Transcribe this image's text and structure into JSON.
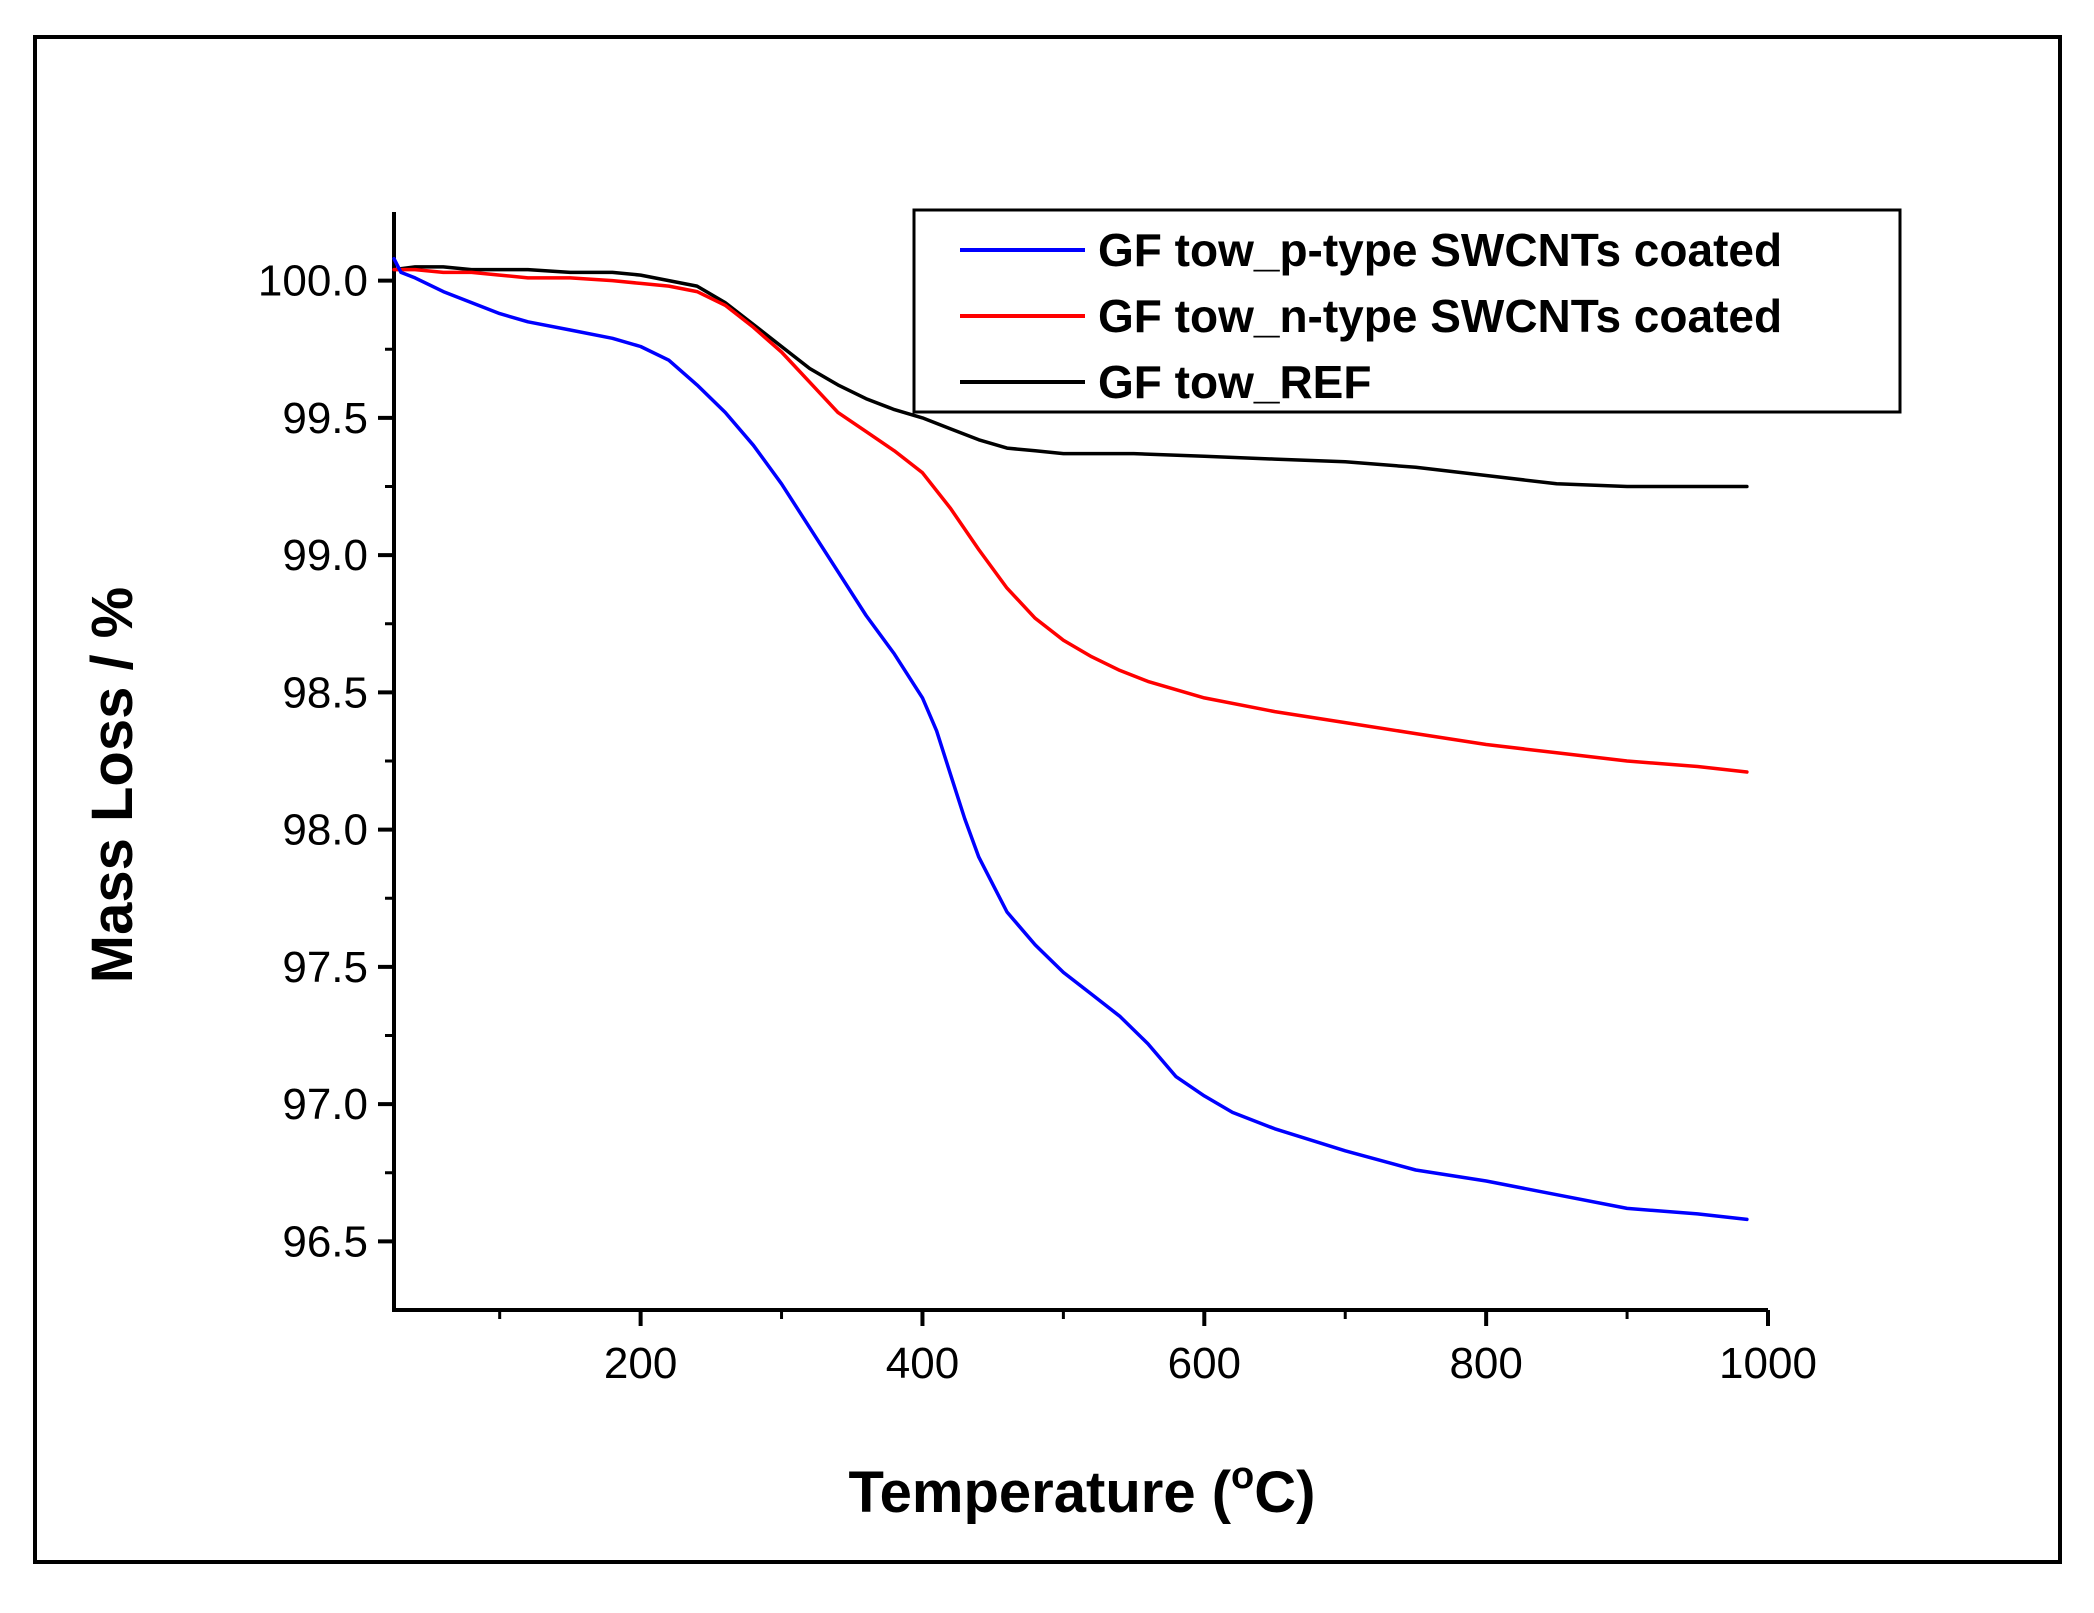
{
  "chart_data": {
    "type": "line",
    "title": "",
    "xlabel": "Temperature (",
    "xlabel_superscript": "o",
    "xlabel_suffix": "C)",
    "ylabel": "Mass Loss / %",
    "xlim": [
      25,
      1000
    ],
    "ylim": [
      96.25,
      100.25
    ],
    "xticks": [
      200,
      400,
      600,
      800,
      1000
    ],
    "xticks_minor": [
      100,
      300,
      500,
      700,
      900
    ],
    "yticks": [
      96.5,
      97.0,
      97.5,
      98.0,
      98.5,
      99.0,
      99.5,
      100.0
    ],
    "yticks_minor": [
      96.75,
      97.25,
      97.75,
      98.25,
      98.75,
      99.25,
      99.75
    ],
    "ytick_labels": [
      "96.5",
      "97.0",
      "97.5",
      "98.0",
      "98.5",
      "99.0",
      "99.5",
      "100.0"
    ],
    "xtick_labels": [
      "200",
      "400",
      "600",
      "800",
      "1000"
    ],
    "grid": false,
    "legend_position": "top-right",
    "series": [
      {
        "name": "GF tow_p-type SWCNTs coated",
        "color": "#0000ff",
        "x": [
          25,
          30,
          40,
          60,
          80,
          100,
          120,
          150,
          180,
          200,
          220,
          240,
          260,
          280,
          300,
          320,
          340,
          360,
          380,
          400,
          410,
          420,
          430,
          440,
          460,
          480,
          500,
          520,
          540,
          560,
          580,
          600,
          620,
          650,
          700,
          750,
          800,
          850,
          900,
          950,
          985
        ],
        "y": [
          100.08,
          100.03,
          100.01,
          99.96,
          99.92,
          99.88,
          99.85,
          99.82,
          99.79,
          99.76,
          99.71,
          99.62,
          99.52,
          99.4,
          99.26,
          99.1,
          98.94,
          98.78,
          98.64,
          98.48,
          98.36,
          98.2,
          98.04,
          97.9,
          97.7,
          97.58,
          97.48,
          97.4,
          97.32,
          97.22,
          97.1,
          97.03,
          96.97,
          96.91,
          96.83,
          96.76,
          96.72,
          96.67,
          96.62,
          96.6,
          96.58
        ]
      },
      {
        "name": "GF tow_n-type SWCNTs coated",
        "color": "#ff0000",
        "x": [
          25,
          40,
          60,
          80,
          100,
          120,
          150,
          180,
          200,
          220,
          240,
          260,
          280,
          300,
          320,
          340,
          360,
          380,
          400,
          420,
          440,
          460,
          480,
          500,
          520,
          540,
          560,
          600,
          650,
          700,
          750,
          800,
          850,
          900,
          950,
          985
        ],
        "y": [
          100.04,
          100.04,
          100.03,
          100.03,
          100.02,
          100.01,
          100.01,
          100.0,
          99.99,
          99.98,
          99.96,
          99.91,
          99.83,
          99.74,
          99.63,
          99.52,
          99.45,
          99.38,
          99.3,
          99.17,
          99.02,
          98.88,
          98.77,
          98.69,
          98.63,
          98.58,
          98.54,
          98.48,
          98.43,
          98.39,
          98.35,
          98.31,
          98.28,
          98.25,
          98.23,
          98.21
        ]
      },
      {
        "name": "GF tow_REF",
        "color": "#000000",
        "x": [
          25,
          40,
          60,
          80,
          100,
          120,
          150,
          180,
          200,
          220,
          240,
          260,
          280,
          300,
          320,
          340,
          360,
          380,
          400,
          420,
          440,
          460,
          480,
          500,
          550,
          600,
          650,
          700,
          750,
          800,
          850,
          900,
          950,
          985
        ],
        "y": [
          100.04,
          100.05,
          100.05,
          100.04,
          100.04,
          100.04,
          100.03,
          100.03,
          100.02,
          100.0,
          99.98,
          99.92,
          99.84,
          99.76,
          99.68,
          99.62,
          99.57,
          99.53,
          99.5,
          99.46,
          99.42,
          99.39,
          99.38,
          99.37,
          99.37,
          99.36,
          99.35,
          99.34,
          99.32,
          99.29,
          99.26,
          99.25,
          99.25,
          99.25
        ]
      }
    ]
  }
}
